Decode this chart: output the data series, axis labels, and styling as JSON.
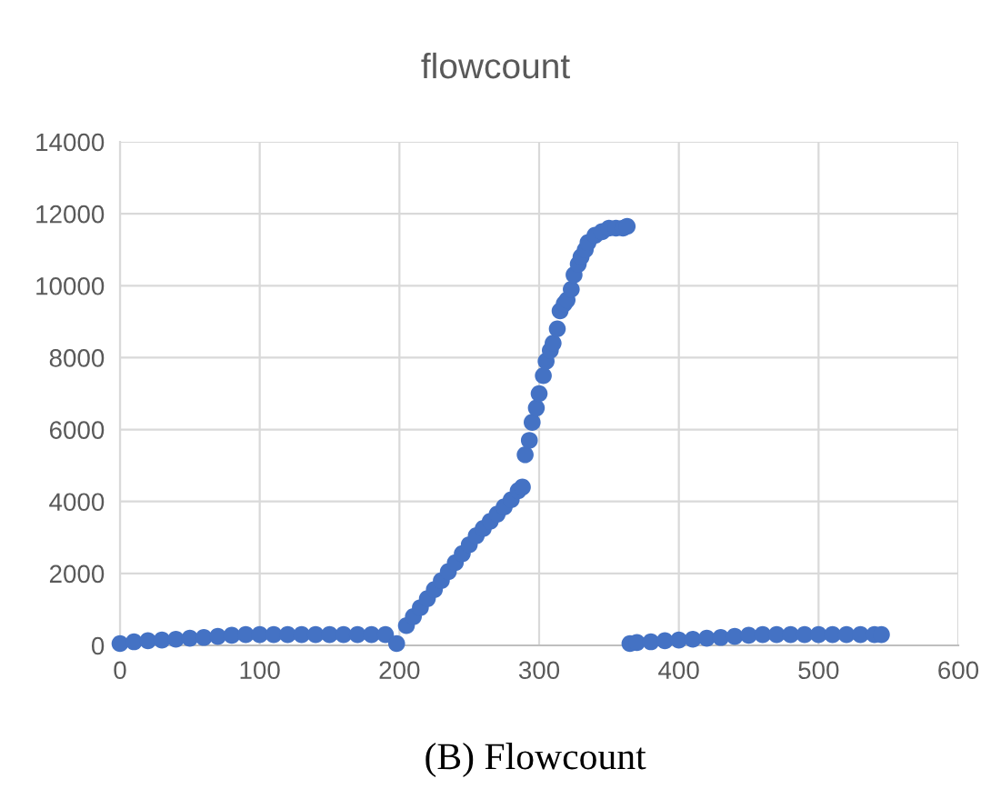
{
  "chart_data": {
    "type": "scatter",
    "title": "flowcount",
    "annotations": [
      "(B) Flowcount"
    ],
    "x": [
      0,
      10,
      20,
      30,
      40,
      50,
      60,
      70,
      80,
      90,
      100,
      110,
      120,
      130,
      140,
      150,
      160,
      170,
      180,
      190,
      198,
      205,
      210,
      215,
      220,
      225,
      230,
      235,
      240,
      245,
      250,
      255,
      260,
      265,
      270,
      275,
      280,
      285,
      288,
      290,
      293,
      295,
      298,
      300,
      303,
      305,
      308,
      310,
      313,
      315,
      318,
      320,
      323,
      325,
      328,
      330,
      333,
      335,
      340,
      345,
      350,
      355,
      360,
      363,
      365,
      370,
      380,
      390,
      400,
      410,
      420,
      430,
      440,
      450,
      460,
      470,
      480,
      490,
      500,
      510,
      520,
      530,
      540,
      545
    ],
    "series": [
      {
        "color": "#4472c4",
        "values": [
          50,
          100,
          130,
          150,
          170,
          200,
          220,
          250,
          280,
          300,
          300,
          300,
          300,
          300,
          300,
          300,
          300,
          300,
          300,
          300,
          50,
          550,
          800,
          1050,
          1300,
          1550,
          1800,
          2050,
          2300,
          2550,
          2800,
          3050,
          3250,
          3450,
          3650,
          3850,
          4050,
          4300,
          4400,
          5300,
          5700,
          6200,
          6600,
          7000,
          7500,
          7900,
          8200,
          8400,
          8800,
          9300,
          9500,
          9600,
          9900,
          10300,
          10600,
          10800,
          11000,
          11200,
          11400,
          11500,
          11600,
          11600,
          11600,
          11650,
          50,
          80,
          100,
          130,
          150,
          170,
          200,
          220,
          250,
          280,
          300,
          300,
          300,
          300,
          300,
          300,
          300,
          300,
          300,
          300
        ]
      }
    ],
    "xlim": [
      0,
      600
    ],
    "xticks": [
      0,
      100,
      200,
      300,
      400,
      500,
      600
    ],
    "ylim": [
      0,
      14000
    ],
    "yticks": [
      0,
      2000,
      4000,
      6000,
      8000,
      10000,
      12000,
      14000
    ],
    "grid": true,
    "marker": "circle"
  }
}
